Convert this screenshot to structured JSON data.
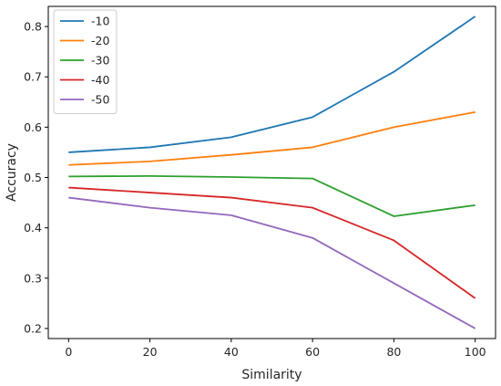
{
  "chart_data": {
    "type": "line",
    "xlabel": "Similarity",
    "ylabel": "Accuracy",
    "x": [
      0,
      20,
      40,
      60,
      80,
      100
    ],
    "xlim": [
      -5,
      105
    ],
    "ylim": [
      0.18,
      0.84
    ],
    "xticks": [
      0,
      20,
      40,
      60,
      80,
      100
    ],
    "yticks": [
      0.2,
      0.3,
      0.4,
      0.5,
      0.6,
      0.7,
      0.8
    ],
    "xtick_labels": [
      "0",
      "20",
      "40",
      "60",
      "80",
      "100"
    ],
    "ytick_labels": [
      "0.2",
      "0.3",
      "0.4",
      "0.5",
      "0.6",
      "0.7",
      "0.8"
    ],
    "grid": false,
    "legend_position": "top-left",
    "series": [
      {
        "name": "-10",
        "color": "#1f77b4",
        "values": [
          0.55,
          0.56,
          0.58,
          0.62,
          0.71,
          0.82
        ]
      },
      {
        "name": "-20",
        "color": "#ff7f0e",
        "values": [
          0.525,
          0.532,
          0.545,
          0.56,
          0.6,
          0.63
        ]
      },
      {
        "name": "-30",
        "color": "#2ca02c",
        "values": [
          0.502,
          0.503,
          0.501,
          0.498,
          0.423,
          0.445
        ]
      },
      {
        "name": "-40",
        "color": "#d62728",
        "values": [
          0.48,
          0.47,
          0.46,
          0.44,
          0.375,
          0.26
        ]
      },
      {
        "name": "-50",
        "color": "#9467bd",
        "values": [
          0.46,
          0.44,
          0.425,
          0.38,
          0.29,
          0.2
        ]
      }
    ]
  }
}
